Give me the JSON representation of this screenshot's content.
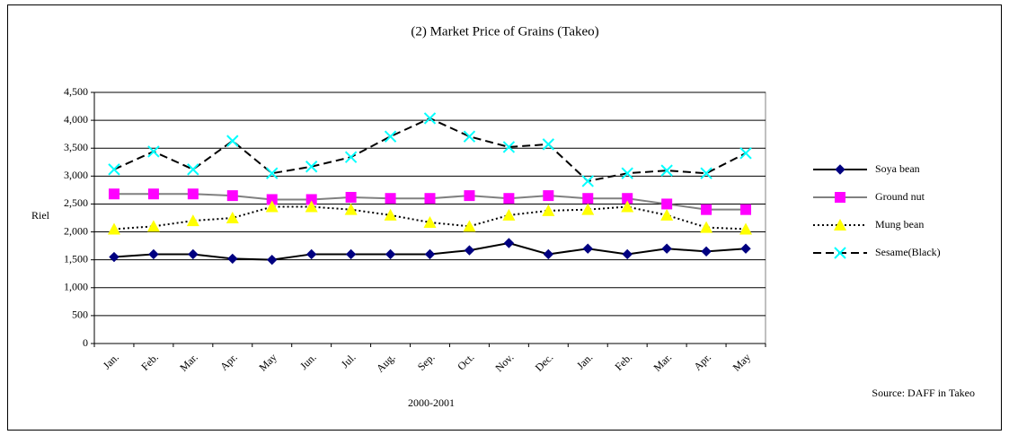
{
  "chart_data": {
    "type": "line",
    "title": "(2) Market Price of Grains (Takeo)",
    "x_label": "2000-2001",
    "y_label": "Riel",
    "source": "Source: DAFF in Takeo",
    "categories": [
      "Jan.",
      "Feb.",
      "Mar.",
      "Apr.",
      "May",
      "Jun.",
      "Jul.",
      "Aug.",
      "Sep.",
      "Oct.",
      "Nov.",
      "Dec.",
      "Jan.",
      "Feb.",
      "Mar.",
      "Apr.",
      "May"
    ],
    "series": [
      {
        "name": "Soya bean",
        "color": "#000080",
        "line_color": "#000000",
        "line_style": "solid",
        "marker": "diamond",
        "values": [
          1550,
          1600,
          1600,
          1520,
          1500,
          1600,
          1600,
          1600,
          1600,
          1670,
          1800,
          1600,
          1700,
          1600,
          1700,
          1650,
          1700
        ]
      },
      {
        "name": "Ground nut",
        "color": "#ff00ff",
        "line_color": "#808080",
        "line_style": "solid",
        "marker": "square",
        "values": [
          2680,
          2680,
          2680,
          2650,
          2580,
          2580,
          2620,
          2600,
          2600,
          2650,
          2600,
          2650,
          2600,
          2600,
          2500,
          2400,
          2400
        ]
      },
      {
        "name": "Mung bean",
        "color": "#ffff00",
        "line_color": "#000000",
        "line_style": "dotted",
        "marker": "triangle",
        "values": [
          2050,
          2100,
          2200,
          2250,
          2450,
          2450,
          2400,
          2300,
          2170,
          2100,
          2300,
          2380,
          2400,
          2450,
          2300,
          2080,
          2050
        ]
      },
      {
        "name": "Sesame(Black)",
        "color": "#00ffff",
        "line_color": "#000000",
        "line_style": "dashed",
        "marker": "x",
        "values": [
          3120,
          3440,
          3120,
          3630,
          3050,
          3170,
          3340,
          3710,
          4035,
          3710,
          3520,
          3570,
          2910,
          3050,
          3100,
          3050,
          3410
        ]
      }
    ],
    "ylim": [
      0,
      4500
    ],
    "yticks": [
      0,
      500,
      {
        "value": 1000,
        "label": "1,000"
      },
      {
        "value": 1500,
        "label": "1,500"
      },
      {
        "value": 2000,
        "label": "2,000"
      },
      {
        "value": 2500,
        "label": "2,500"
      },
      {
        "value": 3000,
        "label": "3,000"
      },
      {
        "value": 3500,
        "label": "3,500"
      },
      {
        "value": 4000,
        "label": "4,000"
      },
      {
        "value": 4500,
        "label": "4,500"
      }
    ],
    "grid": true,
    "legend": "right"
  }
}
